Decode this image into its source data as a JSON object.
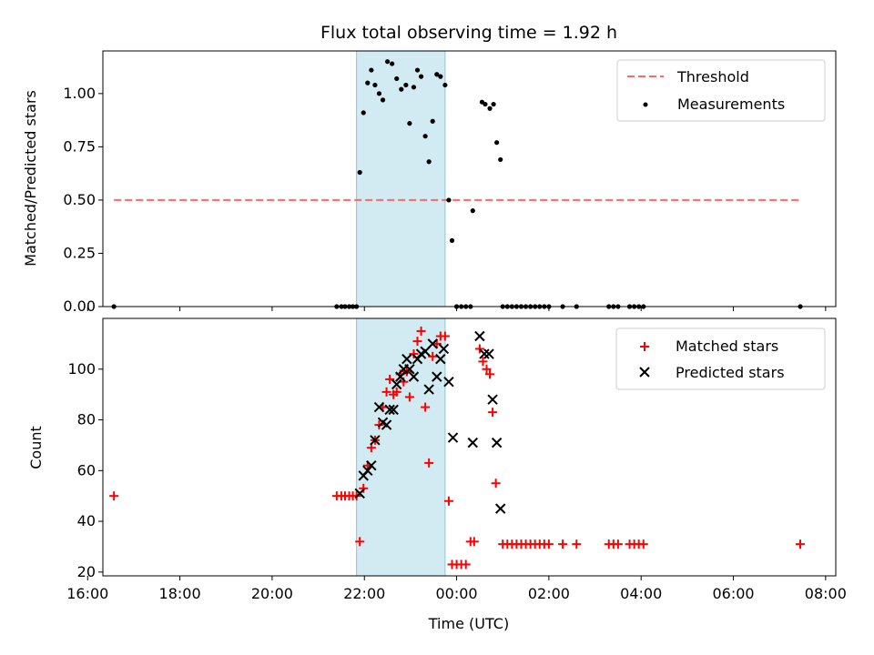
{
  "chart_data": [
    {
      "type": "scatter",
      "title": "Flux total observing time = 1.92 h",
      "ylabel": "Matched/Predicted stars",
      "xlabel": "",
      "xlim": [
        16.33,
        32.22
      ],
      "ylim": [
        0,
        1.2
      ],
      "yticks": [
        0.0,
        0.25,
        0.5,
        0.75,
        1.0
      ],
      "ytick_labels": [
        "0.00",
        "0.25",
        "0.50",
        "0.75",
        "1.00"
      ],
      "highlight_span": [
        21.83,
        23.75
      ],
      "highlight_color": "#add8e6",
      "legend": {
        "position": "top-right",
        "entries": [
          "Threshold",
          "Measurements"
        ]
      },
      "series": [
        {
          "name": "Threshold",
          "style": "dashed-line",
          "color": "#ff6666",
          "points": [
            [
              16.57,
              0.5
            ],
            [
              31.45,
              0.5
            ]
          ]
        },
        {
          "name": "Measurements",
          "style": "dot",
          "color": "#000000",
          "points": [
            [
              16.57,
              0.0
            ],
            [
              21.4,
              0.0
            ],
            [
              21.5,
              0.0
            ],
            [
              21.58,
              0.0
            ],
            [
              21.67,
              0.0
            ],
            [
              21.75,
              0.0
            ],
            [
              21.83,
              0.0
            ],
            [
              21.9,
              0.63
            ],
            [
              21.98,
              0.91
            ],
            [
              22.07,
              1.05
            ],
            [
              22.15,
              1.11
            ],
            [
              22.23,
              1.04
            ],
            [
              22.32,
              1.0
            ],
            [
              22.4,
              0.97
            ],
            [
              22.5,
              1.15
            ],
            [
              22.6,
              1.14
            ],
            [
              22.7,
              1.07
            ],
            [
              22.8,
              1.02
            ],
            [
              22.9,
              1.04
            ],
            [
              22.98,
              0.86
            ],
            [
              23.07,
              1.03
            ],
            [
              23.15,
              1.11
            ],
            [
              23.23,
              1.08
            ],
            [
              23.32,
              0.8
            ],
            [
              23.4,
              0.68
            ],
            [
              23.48,
              0.87
            ],
            [
              23.57,
              1.09
            ],
            [
              23.65,
              1.08
            ],
            [
              23.75,
              1.04
            ],
            [
              23.83,
              0.5
            ],
            [
              23.9,
              0.31
            ],
            [
              24.0,
              0.0
            ],
            [
              24.1,
              0.0
            ],
            [
              24.2,
              0.0
            ],
            [
              24.3,
              0.0
            ],
            [
              24.35,
              0.45
            ],
            [
              24.55,
              0.96
            ],
            [
              24.62,
              0.95
            ],
            [
              24.72,
              0.93
            ],
            [
              24.8,
              0.95
            ],
            [
              24.87,
              0.77
            ],
            [
              24.95,
              0.69
            ],
            [
              25.0,
              0.0
            ],
            [
              25.1,
              0.0
            ],
            [
              25.2,
              0.0
            ],
            [
              25.3,
              0.0
            ],
            [
              25.4,
              0.0
            ],
            [
              25.5,
              0.0
            ],
            [
              25.6,
              0.0
            ],
            [
              25.7,
              0.0
            ],
            [
              25.8,
              0.0
            ],
            [
              25.9,
              0.0
            ],
            [
              26.0,
              0.0
            ],
            [
              26.3,
              0.0
            ],
            [
              26.6,
              0.0
            ],
            [
              27.3,
              0.0
            ],
            [
              27.4,
              0.0
            ],
            [
              27.5,
              0.0
            ],
            [
              27.75,
              0.0
            ],
            [
              27.85,
              0.0
            ],
            [
              27.95,
              0.0
            ],
            [
              28.05,
              0.0
            ],
            [
              31.45,
              0.0
            ]
          ]
        }
      ]
    },
    {
      "type": "scatter",
      "title": "",
      "ylabel": "Count",
      "xlabel": "Time (UTC)",
      "xlim": [
        16.33,
        32.22
      ],
      "ylim": [
        18.5,
        120
      ],
      "xticks": [
        16,
        18,
        20,
        22,
        24,
        26,
        28,
        30,
        32
      ],
      "xtick_labels": [
        "16:00",
        "18:00",
        "20:00",
        "22:00",
        "00:00",
        "02:00",
        "04:00",
        "06:00",
        "08:00"
      ],
      "yticks": [
        20,
        40,
        60,
        80,
        100
      ],
      "ytick_labels": [
        "20",
        "40",
        "60",
        "80",
        "100"
      ],
      "highlight_span": [
        21.83,
        23.75
      ],
      "highlight_color": "#add8e6",
      "legend": {
        "position": "top-right",
        "entries": [
          "Matched stars",
          "Predicted stars"
        ]
      },
      "series": [
        {
          "name": "Matched stars",
          "style": "plus",
          "color": "#ff0000",
          "points": [
            [
              16.57,
              50
            ],
            [
              21.4,
              50
            ],
            [
              21.5,
              50
            ],
            [
              21.58,
              50
            ],
            [
              21.67,
              50
            ],
            [
              21.75,
              50
            ],
            [
              21.83,
              50
            ],
            [
              21.9,
              32
            ],
            [
              21.98,
              53
            ],
            [
              22.07,
              62
            ],
            [
              22.15,
              69
            ],
            [
              22.23,
              72
            ],
            [
              22.32,
              78
            ],
            [
              22.4,
              85
            ],
            [
              22.48,
              91
            ],
            [
              22.55,
              96
            ],
            [
              22.63,
              90
            ],
            [
              22.7,
              91
            ],
            [
              22.78,
              98
            ],
            [
              22.85,
              95
            ],
            [
              22.92,
              99
            ],
            [
              22.98,
              89
            ],
            [
              23.07,
              106
            ],
            [
              23.15,
              111
            ],
            [
              23.23,
              115
            ],
            [
              23.32,
              85
            ],
            [
              23.4,
              63
            ],
            [
              23.48,
              105
            ],
            [
              23.57,
              110
            ],
            [
              23.65,
              113
            ],
            [
              23.75,
              113
            ],
            [
              23.83,
              48
            ],
            [
              23.9,
              23
            ],
            [
              24.0,
              23
            ],
            [
              24.1,
              23
            ],
            [
              24.2,
              23
            ],
            [
              24.3,
              32
            ],
            [
              24.38,
              32
            ],
            [
              24.5,
              108
            ],
            [
              24.57,
              103
            ],
            [
              24.65,
              100
            ],
            [
              24.72,
              98
            ],
            [
              24.78,
              83
            ],
            [
              24.85,
              55
            ],
            [
              25.0,
              31
            ],
            [
              25.1,
              31
            ],
            [
              25.2,
              31
            ],
            [
              25.3,
              31
            ],
            [
              25.4,
              31
            ],
            [
              25.5,
              31
            ],
            [
              25.6,
              31
            ],
            [
              25.7,
              31
            ],
            [
              25.8,
              31
            ],
            [
              25.9,
              31
            ],
            [
              26.0,
              31
            ],
            [
              26.3,
              31
            ],
            [
              26.6,
              31
            ],
            [
              27.3,
              31
            ],
            [
              27.4,
              31
            ],
            [
              27.5,
              31
            ],
            [
              27.75,
              31
            ],
            [
              27.85,
              31
            ],
            [
              27.95,
              31
            ],
            [
              28.05,
              31
            ],
            [
              31.45,
              31
            ]
          ]
        },
        {
          "name": "Predicted stars",
          "style": "x",
          "color": "#000000",
          "points": [
            [
              21.9,
              51
            ],
            [
              21.98,
              58
            ],
            [
              22.07,
              60
            ],
            [
              22.15,
              62
            ],
            [
              22.23,
              72
            ],
            [
              22.32,
              85
            ],
            [
              22.4,
              79
            ],
            [
              22.48,
              78
            ],
            [
              22.55,
              84
            ],
            [
              22.63,
              84
            ],
            [
              22.7,
              94
            ],
            [
              22.78,
              97
            ],
            [
              22.85,
              100
            ],
            [
              22.92,
              104
            ],
            [
              22.98,
              100
            ],
            [
              23.07,
              97
            ],
            [
              23.15,
              104
            ],
            [
              23.23,
              106
            ],
            [
              23.32,
              107
            ],
            [
              23.4,
              92
            ],
            [
              23.48,
              110
            ],
            [
              23.57,
              97
            ],
            [
              23.65,
              104
            ],
            [
              23.72,
              108
            ],
            [
              23.83,
              95
            ],
            [
              23.92,
              73
            ],
            [
              24.35,
              71
            ],
            [
              24.5,
              113
            ],
            [
              24.6,
              106
            ],
            [
              24.7,
              106
            ],
            [
              24.78,
              88
            ],
            [
              24.87,
              71
            ],
            [
              24.95,
              45
            ]
          ]
        }
      ]
    }
  ]
}
